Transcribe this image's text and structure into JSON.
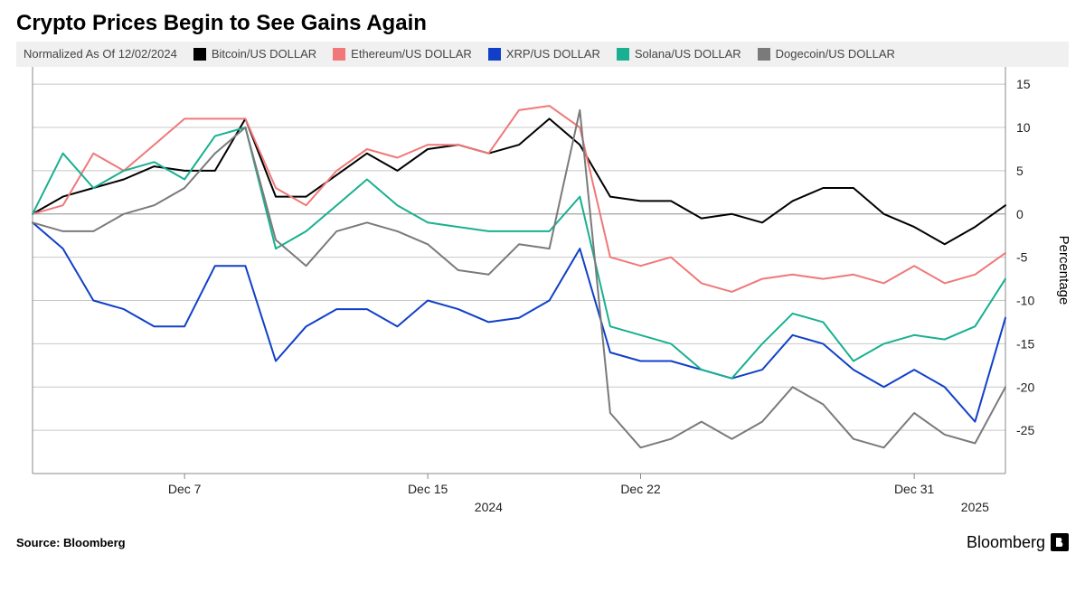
{
  "title": "Crypto Prices Begin to See Gains Again",
  "legend": {
    "normalized_label": "Normalized As Of 12/02/2024",
    "items": [
      {
        "name": "Bitcoin/US DOLLAR",
        "color": "#000000"
      },
      {
        "name": "Ethereum/US DOLLAR",
        "color": "#f07878"
      },
      {
        "name": "XRP/US DOLLAR",
        "color": "#1040c8"
      },
      {
        "name": "Solana/US DOLLAR",
        "color": "#18b090"
      },
      {
        "name": "Dogecoin/US DOLLAR",
        "color": "#7a7a7a"
      }
    ]
  },
  "chart": {
    "type": "line",
    "background_color": "#ffffff",
    "grid_color": "#c8c8c8",
    "axis_color": "#888888",
    "line_width": 2,
    "y": {
      "label": "Percentage",
      "min": -30,
      "max": 17,
      "ticks": [
        -25,
        -20,
        -15,
        -10,
        -5,
        0,
        5,
        10,
        15
      ]
    },
    "x": {
      "ticks": [
        {
          "idx": 5,
          "label": "Dec 7"
        },
        {
          "idx": 13,
          "label": "Dec 15"
        },
        {
          "idx": 20,
          "label": "Dec 22"
        },
        {
          "idx": 29,
          "label": "Dec 31"
        }
      ],
      "year_markers": [
        {
          "idx": 15,
          "label": "2024"
        },
        {
          "idx": 31,
          "label": "2025"
        }
      ]
    },
    "n_points": 33,
    "series": [
      {
        "key": "bitcoin",
        "color": "#000000",
        "values": [
          0,
          2,
          3,
          4,
          5.5,
          5,
          5,
          11,
          2,
          2,
          4.5,
          7,
          5,
          7.5,
          8,
          7,
          8,
          11,
          8,
          2,
          1.5,
          1.5,
          -0.5,
          0,
          -1,
          1.5,
          3,
          3,
          0,
          -1.5,
          -3.5,
          -1.5,
          1
        ]
      },
      {
        "key": "ethereum",
        "color": "#f07878",
        "values": [
          0,
          1,
          7,
          5,
          8,
          11,
          11,
          11,
          3,
          1,
          5,
          7.5,
          6.5,
          8,
          8,
          7,
          12,
          12.5,
          10,
          -5,
          -6,
          -5,
          -8,
          -9,
          -7.5,
          -7,
          -7.5,
          -7,
          -8,
          -6,
          -8,
          -7,
          -4.5
        ]
      },
      {
        "key": "xrp",
        "color": "#1040c8",
        "values": [
          -1,
          -4,
          -10,
          -11,
          -13,
          -13,
          -6,
          -6,
          -17,
          -13,
          -11,
          -11,
          -13,
          -10,
          -11,
          -12.5,
          -12,
          -10,
          -4,
          -16,
          -17,
          -17,
          -18,
          -19,
          -18,
          -14,
          -15,
          -18,
          -20,
          -18,
          -20,
          -24,
          -12
        ]
      },
      {
        "key": "solana",
        "color": "#18b090",
        "values": [
          0,
          7,
          3,
          5,
          6,
          4,
          9,
          10,
          -4,
          -2,
          1,
          4,
          1,
          -1,
          -1.5,
          -2,
          -2,
          -2,
          2,
          -13,
          -14,
          -15,
          -18,
          -19,
          -15,
          -11.5,
          -12.5,
          -17,
          -15,
          -14,
          -14.5,
          -13,
          -7.5
        ]
      },
      {
        "key": "dogecoin",
        "color": "#7a7a7a",
        "values": [
          -1,
          -2,
          -2,
          0,
          1,
          3,
          7,
          10,
          -3,
          -6,
          -2,
          -1,
          -2,
          -3.5,
          -6.5,
          -7,
          -3.5,
          -4,
          12,
          -23,
          -27,
          -26,
          -24,
          -26,
          -24,
          -20,
          -22,
          -26,
          -27,
          -23,
          -25.5,
          -26.5,
          -20
        ]
      }
    ]
  },
  "source": "Source: Bloomberg",
  "brand": "Bloomberg"
}
